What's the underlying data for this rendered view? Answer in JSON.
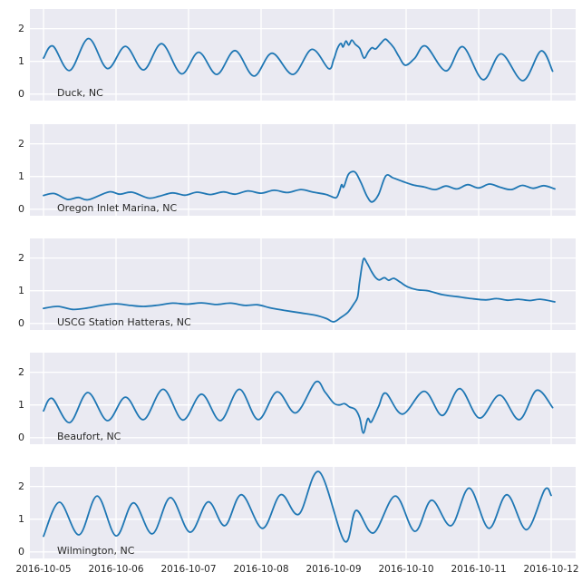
{
  "figure": {
    "background": "#ffffff"
  },
  "style": {
    "panel_background": "#eaeaf2",
    "grid_color": "#ffffff",
    "line_color": "#1f77b4",
    "tick_label_color": "#262626",
    "station_label_color": "#262626"
  },
  "chart_data": {
    "type": "line",
    "title": "",
    "xlabel": "",
    "ylabel": "",
    "x_unit": "days since 2016-10-05 00:00",
    "xlim": [
      -0.1875,
      7.3375
    ],
    "ylim": [
      -0.2,
      2.6
    ],
    "yticks": [
      0,
      1,
      2
    ],
    "ytick_labels": [
      "0",
      "1",
      "2"
    ],
    "xtick_positions": [
      0,
      1,
      2,
      3,
      4,
      5,
      6,
      7
    ],
    "xtick_labels": [
      "2016-10-05",
      "2016-10-06",
      "2016-10-07",
      "2016-10-08",
      "2016-10-09",
      "2016-10-10",
      "2016-10-11",
      "2016-10-12"
    ],
    "grid": true,
    "legend": "none",
    "series": [
      {
        "name": "Duck, NC",
        "points": [
          [
            0.0,
            1.1
          ],
          [
            0.13,
            1.47
          ],
          [
            0.36,
            0.72
          ],
          [
            0.62,
            1.7
          ],
          [
            0.88,
            0.78
          ],
          [
            1.13,
            1.46
          ],
          [
            1.38,
            0.74
          ],
          [
            1.63,
            1.54
          ],
          [
            1.9,
            0.62
          ],
          [
            2.14,
            1.28
          ],
          [
            2.39,
            0.6
          ],
          [
            2.64,
            1.33
          ],
          [
            2.9,
            0.55
          ],
          [
            3.15,
            1.25
          ],
          [
            3.44,
            0.6
          ],
          [
            3.7,
            1.37
          ],
          [
            3.93,
            0.78
          ],
          [
            4.0,
            1.05
          ],
          [
            4.05,
            1.38
          ],
          [
            4.1,
            1.55
          ],
          [
            4.13,
            1.44
          ],
          [
            4.17,
            1.62
          ],
          [
            4.21,
            1.5
          ],
          [
            4.25,
            1.65
          ],
          [
            4.3,
            1.52
          ],
          [
            4.36,
            1.4
          ],
          [
            4.42,
            1.1
          ],
          [
            4.48,
            1.3
          ],
          [
            4.53,
            1.42
          ],
          [
            4.58,
            1.38
          ],
          [
            4.65,
            1.55
          ],
          [
            4.71,
            1.68
          ],
          [
            4.76,
            1.6
          ],
          [
            4.83,
            1.42
          ],
          [
            4.9,
            1.15
          ],
          [
            4.99,
            0.88
          ],
          [
            5.12,
            1.1
          ],
          [
            5.27,
            1.47
          ],
          [
            5.55,
            0.71
          ],
          [
            5.78,
            1.45
          ],
          [
            6.06,
            0.44
          ],
          [
            6.31,
            1.23
          ],
          [
            6.61,
            0.41
          ],
          [
            6.86,
            1.32
          ],
          [
            7.02,
            0.7
          ]
        ]
      },
      {
        "name": "Oregon Inlet Marina, NC",
        "points": [
          [
            0.0,
            0.42
          ],
          [
            0.15,
            0.48
          ],
          [
            0.33,
            0.3
          ],
          [
            0.48,
            0.36
          ],
          [
            0.62,
            0.29
          ],
          [
            0.9,
            0.53
          ],
          [
            1.05,
            0.46
          ],
          [
            1.22,
            0.52
          ],
          [
            1.45,
            0.34
          ],
          [
            1.6,
            0.4
          ],
          [
            1.78,
            0.5
          ],
          [
            1.95,
            0.43
          ],
          [
            2.12,
            0.52
          ],
          [
            2.3,
            0.45
          ],
          [
            2.48,
            0.53
          ],
          [
            2.64,
            0.46
          ],
          [
            2.82,
            0.56
          ],
          [
            3.0,
            0.49
          ],
          [
            3.18,
            0.58
          ],
          [
            3.36,
            0.51
          ],
          [
            3.55,
            0.6
          ],
          [
            3.72,
            0.52
          ],
          [
            3.9,
            0.45
          ],
          [
            4.03,
            0.35
          ],
          [
            4.08,
            0.55
          ],
          [
            4.11,
            0.75
          ],
          [
            4.14,
            0.68
          ],
          [
            4.2,
            1.05
          ],
          [
            4.26,
            1.15
          ],
          [
            4.31,
            1.1
          ],
          [
            4.38,
            0.8
          ],
          [
            4.46,
            0.4
          ],
          [
            4.53,
            0.22
          ],
          [
            4.62,
            0.45
          ],
          [
            4.72,
            1.02
          ],
          [
            4.82,
            0.96
          ],
          [
            4.95,
            0.85
          ],
          [
            5.1,
            0.74
          ],
          [
            5.25,
            0.68
          ],
          [
            5.4,
            0.6
          ],
          [
            5.55,
            0.71
          ],
          [
            5.7,
            0.62
          ],
          [
            5.85,
            0.75
          ],
          [
            6.0,
            0.65
          ],
          [
            6.15,
            0.77
          ],
          [
            6.3,
            0.67
          ],
          [
            6.45,
            0.6
          ],
          [
            6.6,
            0.73
          ],
          [
            6.75,
            0.64
          ],
          [
            6.9,
            0.72
          ],
          [
            7.05,
            0.62
          ]
        ]
      },
      {
        "name": "USCG Station Hatteras, NC",
        "points": [
          [
            0.0,
            0.46
          ],
          [
            0.2,
            0.52
          ],
          [
            0.4,
            0.43
          ],
          [
            0.6,
            0.47
          ],
          [
            0.8,
            0.55
          ],
          [
            1.0,
            0.6
          ],
          [
            1.2,
            0.55
          ],
          [
            1.38,
            0.52
          ],
          [
            1.58,
            0.56
          ],
          [
            1.78,
            0.62
          ],
          [
            1.98,
            0.59
          ],
          [
            2.18,
            0.63
          ],
          [
            2.38,
            0.58
          ],
          [
            2.58,
            0.62
          ],
          [
            2.78,
            0.55
          ],
          [
            2.95,
            0.57
          ],
          [
            3.12,
            0.48
          ],
          [
            3.32,
            0.4
          ],
          [
            3.55,
            0.32
          ],
          [
            3.75,
            0.25
          ],
          [
            3.9,
            0.15
          ],
          [
            4.0,
            0.05
          ],
          [
            4.1,
            0.18
          ],
          [
            4.2,
            0.35
          ],
          [
            4.28,
            0.6
          ],
          [
            4.33,
            0.8
          ],
          [
            4.36,
            1.3
          ],
          [
            4.41,
            1.96
          ],
          [
            4.46,
            1.85
          ],
          [
            4.52,
            1.6
          ],
          [
            4.58,
            1.4
          ],
          [
            4.63,
            1.33
          ],
          [
            4.7,
            1.4
          ],
          [
            4.76,
            1.32
          ],
          [
            4.83,
            1.38
          ],
          [
            4.92,
            1.26
          ],
          [
            5.02,
            1.12
          ],
          [
            5.15,
            1.03
          ],
          [
            5.3,
            1.0
          ],
          [
            5.5,
            0.88
          ],
          [
            5.7,
            0.82
          ],
          [
            5.9,
            0.76
          ],
          [
            6.1,
            0.72
          ],
          [
            6.25,
            0.76
          ],
          [
            6.4,
            0.71
          ],
          [
            6.55,
            0.74
          ],
          [
            6.7,
            0.7
          ],
          [
            6.85,
            0.74
          ],
          [
            7.05,
            0.66
          ]
        ]
      },
      {
        "name": "Beaufort, NC",
        "points": [
          [
            0.0,
            0.82
          ],
          [
            0.12,
            1.2
          ],
          [
            0.36,
            0.46
          ],
          [
            0.61,
            1.38
          ],
          [
            0.88,
            0.52
          ],
          [
            1.13,
            1.24
          ],
          [
            1.38,
            0.55
          ],
          [
            1.65,
            1.48
          ],
          [
            1.92,
            0.54
          ],
          [
            2.18,
            1.33
          ],
          [
            2.44,
            0.52
          ],
          [
            2.7,
            1.48
          ],
          [
            2.96,
            0.55
          ],
          [
            3.22,
            1.4
          ],
          [
            3.48,
            0.76
          ],
          [
            3.75,
            1.7
          ],
          [
            3.88,
            1.4
          ],
          [
            4.0,
            1.06
          ],
          [
            4.08,
            1.0
          ],
          [
            4.15,
            1.04
          ],
          [
            4.22,
            0.94
          ],
          [
            4.3,
            0.86
          ],
          [
            4.36,
            0.6
          ],
          [
            4.41,
            0.14
          ],
          [
            4.47,
            0.58
          ],
          [
            4.52,
            0.48
          ],
          [
            4.62,
            0.95
          ],
          [
            4.72,
            1.36
          ],
          [
            4.95,
            0.72
          ],
          [
            5.25,
            1.42
          ],
          [
            5.5,
            0.68
          ],
          [
            5.74,
            1.5
          ],
          [
            6.01,
            0.6
          ],
          [
            6.29,
            1.3
          ],
          [
            6.56,
            0.55
          ],
          [
            6.8,
            1.45
          ],
          [
            7.02,
            0.92
          ]
        ]
      },
      {
        "name": "Wilmington, NC",
        "points": [
          [
            0.0,
            0.48
          ],
          [
            0.22,
            1.52
          ],
          [
            0.49,
            0.52
          ],
          [
            0.74,
            1.71
          ],
          [
            1.0,
            0.49
          ],
          [
            1.24,
            1.5
          ],
          [
            1.5,
            0.55
          ],
          [
            1.75,
            1.66
          ],
          [
            2.02,
            0.6
          ],
          [
            2.27,
            1.53
          ],
          [
            2.5,
            0.8
          ],
          [
            2.73,
            1.75
          ],
          [
            3.02,
            0.72
          ],
          [
            3.27,
            1.75
          ],
          [
            3.52,
            1.15
          ],
          [
            3.8,
            2.45
          ],
          [
            4.15,
            0.33
          ],
          [
            4.31,
            1.27
          ],
          [
            4.55,
            0.58
          ],
          [
            4.85,
            1.71
          ],
          [
            5.12,
            0.63
          ],
          [
            5.35,
            1.58
          ],
          [
            5.62,
            0.8
          ],
          [
            5.87,
            1.95
          ],
          [
            6.14,
            0.72
          ],
          [
            6.39,
            1.75
          ],
          [
            6.66,
            0.68
          ],
          [
            6.91,
            1.9
          ],
          [
            7.0,
            1.73
          ]
        ]
      }
    ]
  }
}
